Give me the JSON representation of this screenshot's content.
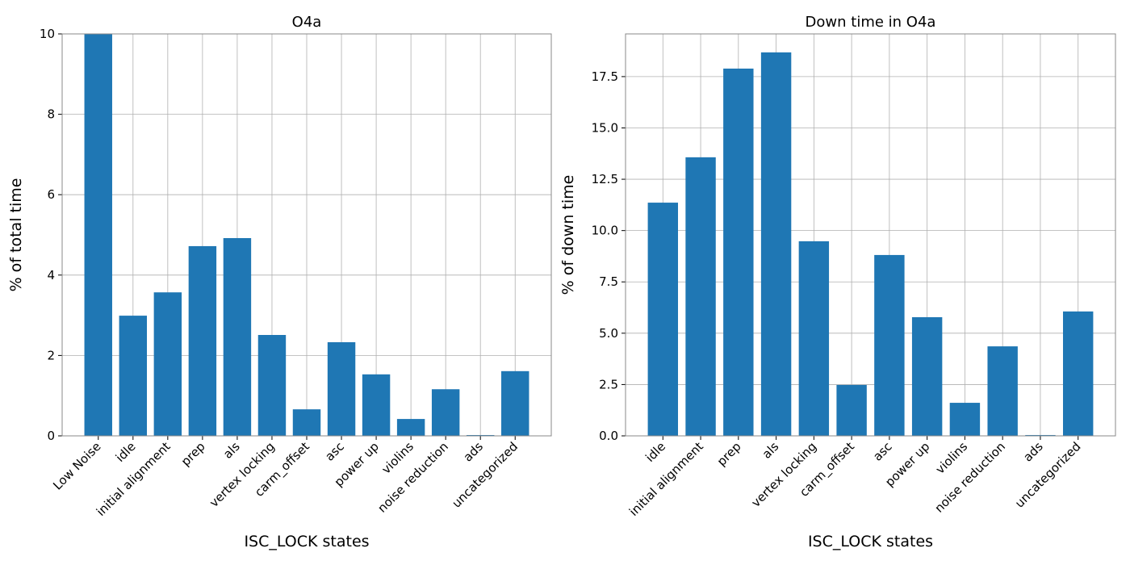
{
  "chart_data": [
    {
      "type": "bar",
      "title": "O4a",
      "xlabel": "ISC_LOCK states",
      "ylabel": "% of total time",
      "color": "#1f77b4",
      "grid": true,
      "categories": [
        "Low Noise",
        "idle",
        "initial alignment",
        "prep",
        "als",
        "vertex locking",
        "carm_offset",
        "asc",
        "power up",
        "violins",
        "noise reduction",
        "ads",
        "uncategorized"
      ],
      "values": [
        10,
        2.99,
        3.57,
        4.72,
        4.92,
        2.51,
        0.66,
        2.33,
        1.53,
        0.42,
        1.16,
        0.02,
        1.61
      ],
      "ylim": [
        0,
        10
      ],
      "yticks": [
        0,
        2,
        4,
        6,
        8,
        10
      ]
    },
    {
      "type": "bar",
      "title": "Down time in O4a",
      "xlabel": "ISC_LOCK states",
      "ylabel": "% of down time",
      "color": "#1f77b4",
      "grid": true,
      "categories": [
        "idle",
        "initial alignment",
        "prep",
        "als",
        "vertex locking",
        "carm_offset",
        "asc",
        "power up",
        "violins",
        "noise reduction",
        "ads",
        "uncategorized"
      ],
      "values": [
        11.36,
        13.57,
        17.89,
        18.68,
        9.48,
        2.48,
        8.81,
        5.78,
        1.61,
        4.36,
        0.04,
        6.06
      ],
      "ylim": [
        0,
        19.58
      ],
      "yticks": [
        {
          "value": 0,
          "label": "0.0"
        },
        {
          "value": 2.5,
          "label": "2.5"
        },
        {
          "value": 5,
          "label": "5.0"
        },
        {
          "value": 7.5,
          "label": "7.5"
        },
        {
          "value": 10,
          "label": "10.0"
        },
        {
          "value": 12.5,
          "label": "12.5"
        },
        {
          "value": 15,
          "label": "15.0"
        },
        {
          "value": 17.5,
          "label": "17.5"
        }
      ]
    }
  ]
}
